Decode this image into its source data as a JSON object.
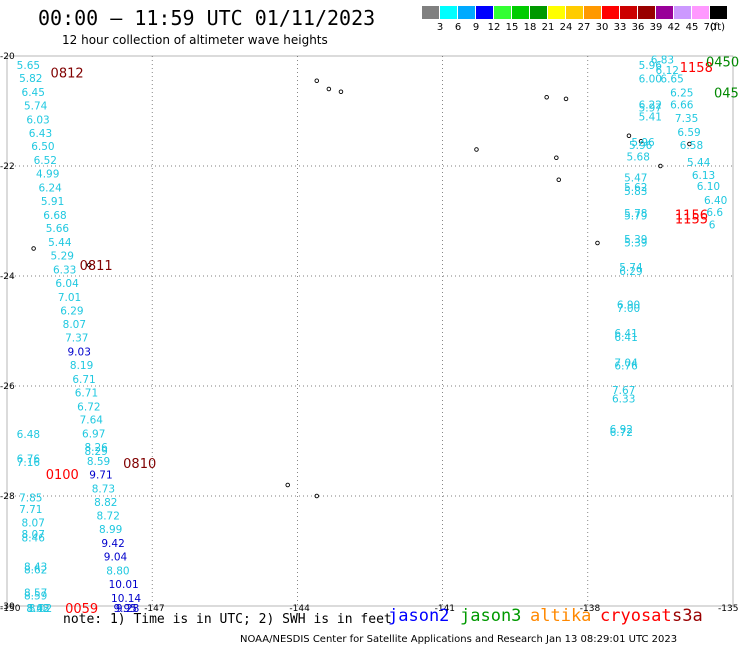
{
  "title": "00:00 – 11:59 UTC 01/11/2023",
  "subtitle": "12 hour collection of altimeter wave heights",
  "note": "note: 1) Time is in UTC; 2) SWH is in feet",
  "credit": "NOAA/NESDIS Center for Satellite Applications and Research   Jan 13 08:29:01 UTC 2023",
  "colors": {
    "cyan": "#20c8e0",
    "blue": "#0000cc",
    "darkred": "#800000",
    "red": "#ff0000",
    "green": "#008800",
    "orange": "#ff8800",
    "grid": "#555555"
  },
  "legend": {
    "unit": "(ft)",
    "bins": [
      {
        "label": "3",
        "color": "#808080"
      },
      {
        "label": "6",
        "color": "#00ffff"
      },
      {
        "label": "9",
        "color": "#00aaff"
      },
      {
        "label": "12",
        "color": "#0000ff"
      },
      {
        "label": "15",
        "color": "#33ff33"
      },
      {
        "label": "18",
        "color": "#00cc00"
      },
      {
        "label": "21",
        "color": "#009900"
      },
      {
        "label": "24",
        "color": "#ffff00"
      },
      {
        "label": "27",
        "color": "#ffcc00"
      },
      {
        "label": "30",
        "color": "#ff9900"
      },
      {
        "label": "33",
        "color": "#ff0000"
      },
      {
        "label": "36",
        "color": "#cc0000"
      },
      {
        "label": "39",
        "color": "#990000"
      },
      {
        "label": "42",
        "color": "#990099"
      },
      {
        "label": "45",
        "color": "#cc99ff"
      },
      {
        "label": "70",
        "color": "#ff99ff"
      },
      {
        "label": "",
        "color": "#000000"
      }
    ]
  },
  "satellites": [
    {
      "name": "jason2",
      "color": "#0000ff"
    },
    {
      "name": "jason3",
      "color": "#009900"
    },
    {
      "name": "altika",
      "color": "#ff8800"
    },
    {
      "name": "cryosat",
      "color": "#ff0000"
    },
    {
      "name": "s3a",
      "color": "#990000"
    }
  ],
  "axes": {
    "lon_ticks": [
      "-150",
      "-147",
      "-144",
      "-141",
      "-138",
      "-135"
    ],
    "lat_ticks": [
      "-20",
      "-22",
      "-24",
      "-26",
      "-28",
      "-30"
    ],
    "lon_range": [
      -150,
      -135
    ],
    "lat_range": [
      -30,
      -20
    ]
  },
  "tracks": [
    {
      "name": "track-a",
      "points": [
        {
          "lon": -149.8,
          "lat": -20.16,
          "v": "5.65",
          "c": "cyan"
        },
        {
          "lon": -149.75,
          "lat": -20.4,
          "v": "5.82",
          "c": "cyan"
        },
        {
          "lon": -149.7,
          "lat": -20.65,
          "v": "6.45",
          "c": "cyan"
        },
        {
          "lon": -149.65,
          "lat": -20.9,
          "v": "5.74",
          "c": "cyan"
        },
        {
          "lon": -149.6,
          "lat": -21.15,
          "v": "6.03",
          "c": "cyan"
        },
        {
          "lon": -149.55,
          "lat": -21.4,
          "v": "6.43",
          "c": "cyan"
        },
        {
          "lon": -149.5,
          "lat": -21.64,
          "v": "6.50",
          "c": "cyan"
        },
        {
          "lon": -149.45,
          "lat": -21.89,
          "v": "6.52",
          "c": "cyan"
        },
        {
          "lon": -149.4,
          "lat": -22.14,
          "v": "4.99",
          "c": "cyan"
        },
        {
          "lon": -149.35,
          "lat": -22.39,
          "v": "6.24",
          "c": "cyan"
        },
        {
          "lon": -149.3,
          "lat": -22.64,
          "v": "5.91",
          "c": "cyan"
        },
        {
          "lon": -149.25,
          "lat": -22.89,
          "v": "6.68",
          "c": "cyan"
        },
        {
          "lon": -149.2,
          "lat": -23.13,
          "v": "5.66",
          "c": "cyan"
        },
        {
          "lon": -149.15,
          "lat": -23.38,
          "v": "5.44",
          "c": "cyan"
        },
        {
          "lon": -149.1,
          "lat": -23.63,
          "v": "5.29",
          "c": "cyan"
        },
        {
          "lon": -149.05,
          "lat": -23.88,
          "v": "6.33",
          "c": "cyan"
        },
        {
          "lon": -149.0,
          "lat": -24.13,
          "v": "6.04",
          "c": "cyan"
        },
        {
          "lon": -148.95,
          "lat": -24.38,
          "v": "7.01",
          "c": "cyan"
        },
        {
          "lon": -148.9,
          "lat": -24.63,
          "v": "6.29",
          "c": "cyan"
        },
        {
          "lon": -148.85,
          "lat": -24.87,
          "v": "8.07",
          "c": "cyan"
        },
        {
          "lon": -148.8,
          "lat": -25.12,
          "v": "7.37",
          "c": "cyan"
        },
        {
          "lon": -148.75,
          "lat": -25.37,
          "v": "9.03",
          "c": "blue"
        },
        {
          "lon": -148.7,
          "lat": -25.62,
          "v": "8.19",
          "c": "cyan"
        },
        {
          "lon": -148.65,
          "lat": -25.87,
          "v": "6.71",
          "c": "cyan"
        },
        {
          "lon": -148.6,
          "lat": -26.12,
          "v": "6.71",
          "c": "cyan"
        },
        {
          "lon": -148.55,
          "lat": -26.37,
          "v": "6.72",
          "c": "cyan"
        },
        {
          "lon": -148.5,
          "lat": -26.61,
          "v": "7.64",
          "c": "cyan"
        },
        {
          "lon": -148.45,
          "lat": -26.86,
          "v": "6.97",
          "c": "cyan"
        },
        {
          "lon": -148.4,
          "lat": -27.11,
          "v": "8.26",
          "c": "cyan"
        },
        {
          "lon": -148.4,
          "lat": -27.18,
          "v": "8.29",
          "c": "cyan"
        },
        {
          "lon": -148.35,
          "lat": -27.36,
          "v": "8.59",
          "c": "cyan"
        },
        {
          "lon": -148.3,
          "lat": -27.61,
          "v": "9.71",
          "c": "blue"
        },
        {
          "lon": -148.25,
          "lat": -27.86,
          "v": "8.73",
          "c": "cyan"
        },
        {
          "lon": -148.2,
          "lat": -28.11,
          "v": "8.82",
          "c": "cyan"
        },
        {
          "lon": -148.15,
          "lat": -28.35,
          "v": "8.72",
          "c": "cyan"
        },
        {
          "lon": -148.1,
          "lat": -28.6,
          "v": "8.99",
          "c": "cyan"
        },
        {
          "lon": -148.05,
          "lat": -28.85,
          "v": "9.42",
          "c": "blue"
        },
        {
          "lon": -148.0,
          "lat": -29.1,
          "v": "9.04",
          "c": "blue"
        },
        {
          "lon": -147.95,
          "lat": -29.35,
          "v": "8.80",
          "c": "cyan"
        },
        {
          "lon": -147.9,
          "lat": -29.6,
          "v": "10.01",
          "c": "blue"
        },
        {
          "lon": -147.85,
          "lat": -29.85,
          "v": "10.14",
          "c": "blue"
        },
        {
          "lon": -147.8,
          "lat": -30.1,
          "v": "9.95",
          "c": "blue"
        },
        {
          "lon": -147.75,
          "lat": -30.35,
          "v": "9.28",
          "c": "blue"
        }
      ]
    },
    {
      "name": "track-b",
      "points": [
        {
          "lon": -149.8,
          "lat": -26.87,
          "v": "6.48",
          "c": "cyan"
        },
        {
          "lon": -149.8,
          "lat": -27.32,
          "v": "6.76",
          "c": "cyan"
        },
        {
          "lon": -149.8,
          "lat": -27.38,
          "v": "7.16",
          "c": "cyan"
        },
        {
          "lon": -149.75,
          "lat": -28.03,
          "v": "7.85",
          "c": "cyan"
        },
        {
          "lon": -149.75,
          "lat": -28.24,
          "v": "7.71",
          "c": "cyan"
        },
        {
          "lon": -149.7,
          "lat": -28.48,
          "v": "8.07",
          "c": "cyan"
        },
        {
          "lon": -149.7,
          "lat": -28.69,
          "v": "8.07",
          "c": "cyan"
        },
        {
          "lon": -149.7,
          "lat": -28.75,
          "v": "8.46",
          "c": "cyan"
        },
        {
          "lon": -149.65,
          "lat": -29.28,
          "v": "8.43",
          "c": "cyan"
        },
        {
          "lon": -149.65,
          "lat": -29.34,
          "v": "8.62",
          "c": "cyan"
        },
        {
          "lon": -149.65,
          "lat": -29.75,
          "v": "8.57",
          "c": "cyan"
        },
        {
          "lon": -149.65,
          "lat": -29.81,
          "v": "8.59",
          "c": "cyan"
        },
        {
          "lon": -149.6,
          "lat": -30.2,
          "v": "8.43",
          "c": "cyan"
        },
        {
          "lon": -149.6,
          "lat": -30.37,
          "v": "8.02",
          "c": "cyan"
        },
        {
          "lon": -149.55,
          "lat": -30.93,
          "v": "8.02",
          "c": "cyan"
        }
      ]
    },
    {
      "name": "track-c",
      "points": [
        {
          "lon": -137.2,
          "lat": -21.83,
          "v": "5.68",
          "c": "cyan"
        },
        {
          "lon": -137.25,
          "lat": -22.21,
          "v": "5.47",
          "c": "cyan"
        },
        {
          "lon": -137.25,
          "lat": -22.38,
          "v": "5.62",
          "c": "cyan"
        },
        {
          "lon": -137.25,
          "lat": -22.45,
          "v": "5.83",
          "c": "cyan"
        },
        {
          "lon": -137.25,
          "lat": -22.85,
          "v": "5.78",
          "c": "cyan"
        },
        {
          "lon": -137.25,
          "lat": -22.9,
          "v": "5.79",
          "c": "cyan"
        },
        {
          "lon": -137.25,
          "lat": -23.33,
          "v": "5.39",
          "c": "cyan"
        },
        {
          "lon": -137.25,
          "lat": -23.39,
          "v": "5.39",
          "c": "cyan"
        },
        {
          "lon": -137.35,
          "lat": -23.84,
          "v": "5.74",
          "c": "cyan"
        },
        {
          "lon": -137.35,
          "lat": -23.91,
          "v": "6.29",
          "c": "cyan"
        },
        {
          "lon": -137.4,
          "lat": -24.52,
          "v": "6.90",
          "c": "cyan"
        },
        {
          "lon": -137.4,
          "lat": -24.58,
          "v": "7.00",
          "c": "cyan"
        },
        {
          "lon": -137.45,
          "lat": -25.04,
          "v": "6.41",
          "c": "cyan"
        },
        {
          "lon": -137.45,
          "lat": -25.11,
          "v": "6.41",
          "c": "cyan"
        },
        {
          "lon": -137.45,
          "lat": -25.57,
          "v": "7.04",
          "c": "cyan"
        },
        {
          "lon": -137.45,
          "lat": -25.63,
          "v": "6.76",
          "c": "cyan"
        },
        {
          "lon": -137.5,
          "lat": -26.07,
          "v": "7.67",
          "c": "cyan"
        },
        {
          "lon": -137.5,
          "lat": -26.23,
          "v": "6.33",
          "c": "cyan"
        },
        {
          "lon": -137.55,
          "lat": -26.78,
          "v": "6.92",
          "c": "cyan"
        },
        {
          "lon": -137.55,
          "lat": -26.84,
          "v": "6.72",
          "c": "cyan"
        }
      ]
    },
    {
      "name": "track-d",
      "points": [
        {
          "lon": -136.7,
          "lat": -20.06,
          "v": "6.83",
          "c": "cyan"
        },
        {
          "lon": -136.95,
          "lat": -20.16,
          "v": "5.96",
          "c": "cyan"
        },
        {
          "lon": -136.6,
          "lat": -20.25,
          "v": "6.12",
          "c": "cyan"
        },
        {
          "lon": -136.95,
          "lat": -20.41,
          "v": "6.00",
          "c": "cyan"
        },
        {
          "lon": -136.5,
          "lat": -20.41,
          "v": "6.65",
          "c": "cyan"
        },
        {
          "lon": -136.3,
          "lat": -20.66,
          "v": "6.25",
          "c": "cyan"
        },
        {
          "lon": -136.95,
          "lat": -20.88,
          "v": "6.22",
          "c": "cyan"
        },
        {
          "lon": -136.95,
          "lat": -20.94,
          "v": "5.97",
          "c": "cyan"
        },
        {
          "lon": -136.95,
          "lat": -21.1,
          "v": "5.41",
          "c": "cyan"
        },
        {
          "lon": -136.3,
          "lat": -20.88,
          "v": "6.66",
          "c": "cyan"
        },
        {
          "lon": -136.2,
          "lat": -21.13,
          "v": "7.35",
          "c": "cyan"
        },
        {
          "lon": -136.15,
          "lat": -21.38,
          "v": "6.59",
          "c": "cyan"
        },
        {
          "lon": -136.1,
          "lat": -21.62,
          "v": "6.58",
          "c": "cyan"
        },
        {
          "lon": -137.1,
          "lat": -21.56,
          "v": "5.96",
          "c": "cyan"
        },
        {
          "lon": -137.15,
          "lat": -21.62,
          "v": "5.96",
          "c": "cyan"
        },
        {
          "lon": -135.95,
          "lat": -21.93,
          "v": "5.44",
          "c": "cyan"
        },
        {
          "lon": -135.85,
          "lat": -22.16,
          "v": "6.13",
          "c": "cyan"
        },
        {
          "lon": -135.75,
          "lat": -22.36,
          "v": "6.10",
          "c": "cyan"
        },
        {
          "lon": -135.6,
          "lat": -22.62,
          "v": "6.40",
          "c": "cyan"
        },
        {
          "lon": -135.55,
          "lat": -22.84,
          "v": "6.6",
          "c": "cyan"
        },
        {
          "lon": -135.5,
          "lat": -23.06,
          "v": "6",
          "c": "cyan"
        }
      ]
    }
  ],
  "time_labels": [
    {
      "lon": -149.1,
      "lat": -20.3,
      "v": "0812",
      "c": "darkred"
    },
    {
      "lon": -148.5,
      "lat": -23.8,
      "v": "0811",
      "c": "darkred"
    },
    {
      "lon": -147.6,
      "lat": -27.4,
      "v": "0810",
      "c": "darkred"
    },
    {
      "lon": -149.2,
      "lat": -27.6,
      "v": "0100",
      "c": "red"
    },
    {
      "lon": -148.8,
      "lat": -31.1,
      "v": "0059",
      "c": "red"
    },
    {
      "lon": -136.1,
      "lat": -20.2,
      "v": "1158",
      "c": "red"
    },
    {
      "lon": -135.3,
      "lat": -20.1,
      "v": "0450",
      "c": "green"
    },
    {
      "lon": -135.2,
      "lat": -20.66,
      "v": "045",
      "c": "green"
    },
    {
      "lon": -136.2,
      "lat": -22.88,
      "v": "1156",
      "c": "red"
    },
    {
      "lon": -136.2,
      "lat": -22.95,
      "v": "1155",
      "c": "red"
    }
  ],
  "islands": [
    {
      "lon": -143.6,
      "lat": -20.45
    },
    {
      "lon": -143.35,
      "lat": -20.6
    },
    {
      "lon": -143.1,
      "lat": -20.65
    },
    {
      "lon": -140.3,
      "lat": -21.7
    },
    {
      "lon": -138.85,
      "lat": -20.75
    },
    {
      "lon": -138.45,
      "lat": -20.78
    },
    {
      "lon": -138.65,
      "lat": -21.85
    },
    {
      "lon": -138.6,
      "lat": -22.25
    },
    {
      "lon": -137.15,
      "lat": -21.45
    },
    {
      "lon": -136.9,
      "lat": -21.55
    },
    {
      "lon": -136.5,
      "lat": -22.0
    },
    {
      "lon": -135.9,
      "lat": -21.6
    },
    {
      "lon": -149.45,
      "lat": -23.5
    },
    {
      "lon": -148.3,
      "lat": -23.8
    },
    {
      "lon": -137.8,
      "lat": -23.4
    },
    {
      "lon": -144.2,
      "lat": -27.8
    },
    {
      "lon": -143.6,
      "lat": -28.0
    }
  ]
}
